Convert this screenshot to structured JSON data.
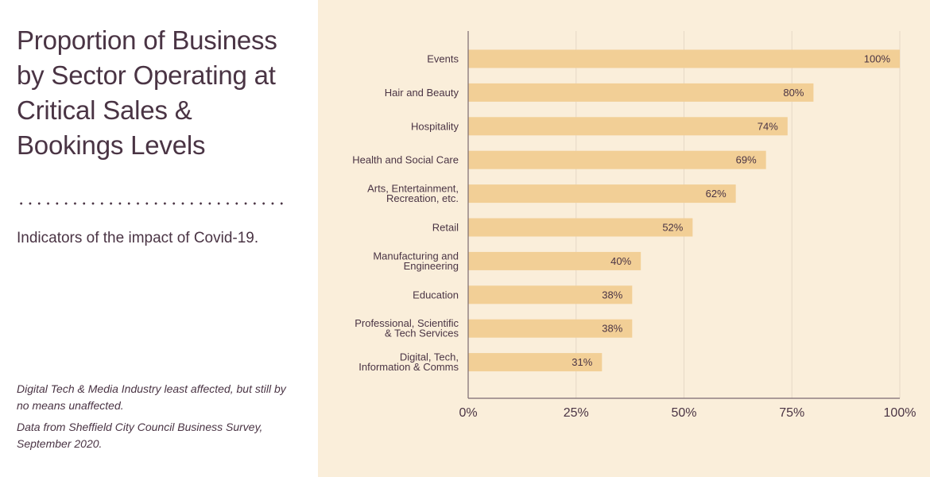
{
  "panel": {
    "title": "Proportion of Business by Sector Operating at Critical Sales & Bookings Levels",
    "subtitle": "Indicators of the impact of Covid-19.",
    "note1": "Digital Tech & Media Industry least affected, but still by no means unaffected.",
    "note2": "Data from Sheffield City Council Business Survey, September 2020."
  },
  "colors": {
    "bar": "#f2cf96",
    "background": "#faeeda",
    "text": "#4a3444",
    "grid": "#e6d8c6",
    "axis": "#7a6a70"
  },
  "chart_data": {
    "type": "bar",
    "orientation": "horizontal",
    "title": "Proportion of Business by Sector Operating at Critical Sales & Bookings Levels",
    "xlabel": "",
    "ylabel": "",
    "xlim": [
      0,
      100
    ],
    "grid": true,
    "categories": [
      [
        "Events"
      ],
      [
        "Hair and Beauty"
      ],
      [
        "Hospitality"
      ],
      [
        "Health and Social Care"
      ],
      [
        "Arts, Entertainment,",
        "Recreation, etc."
      ],
      [
        "Retail"
      ],
      [
        "Manufacturing and",
        "Engineering"
      ],
      [
        "Education"
      ],
      [
        "Professional, Scientific",
        "& Tech Services"
      ],
      [
        "Digital, Tech,",
        "Information & Comms"
      ]
    ],
    "values": [
      100,
      80,
      74,
      69,
      62,
      52,
      40,
      38,
      38,
      31
    ],
    "value_labels": [
      "100%",
      "80%",
      "74%",
      "69%",
      "62%",
      "52%",
      "40%",
      "38%",
      "38%",
      "31%"
    ],
    "x_ticks": [
      0,
      25,
      50,
      75,
      100
    ],
    "x_tick_labels": [
      "0%",
      "25%",
      "50%",
      "75%",
      "100%"
    ]
  }
}
